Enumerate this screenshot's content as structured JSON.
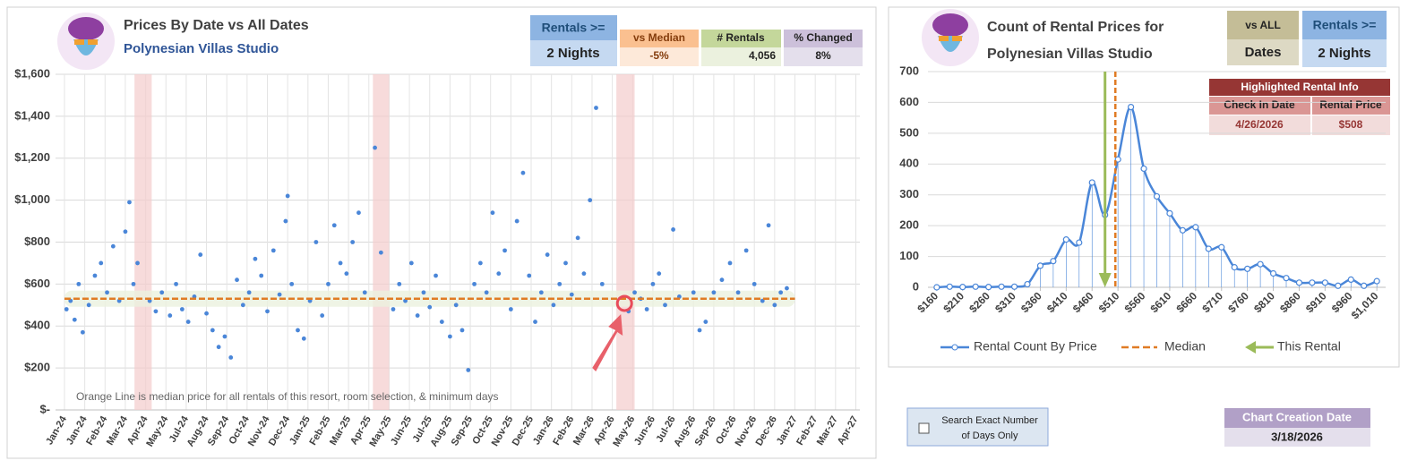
{
  "chart_data": [
    {
      "type": "scatter",
      "title": "Prices By Date vs All Dates",
      "subtitle": "Polynesian Villas Studio",
      "annotation": "Orange Line is median price for all rentals of this resort, room selection, & minimum days",
      "color": "#4a86d8",
      "x": [
        0.1,
        0.3,
        0.5,
        0.7,
        0.9,
        1.2,
        1.5,
        1.8,
        2.1,
        2.4,
        2.7,
        3.0,
        3.2,
        3.4,
        3.6,
        4.2,
        4.5,
        4.8,
        5.2,
        5.5,
        5.8,
        6.1,
        6.4,
        6.7,
        7.0,
        7.3,
        7.6,
        7.9,
        8.2,
        8.5,
        8.8,
        9.1,
        9.4,
        9.7,
        10.0,
        10.3,
        10.6,
        10.9,
        11.0,
        11.2,
        11.5,
        11.8,
        12.1,
        12.4,
        12.7,
        13.0,
        13.3,
        13.6,
        13.9,
        14.2,
        14.5,
        14.8,
        15.3,
        15.6,
        16.2,
        16.5,
        16.8,
        17.1,
        17.4,
        17.7,
        18.0,
        18.3,
        18.6,
        19.0,
        19.3,
        19.6,
        19.9,
        20.2,
        20.5,
        20.8,
        21.1,
        21.4,
        21.7,
        22.0,
        22.3,
        22.6,
        22.9,
        23.2,
        23.5,
        23.8,
        24.1,
        24.4,
        24.7,
        25.0,
        25.3,
        25.6,
        25.9,
        26.2,
        26.5,
        27.8,
        28.1,
        28.4,
        28.7,
        29.0,
        29.3,
        29.6,
        30.0,
        30.3,
        31.0,
        31.3,
        31.6,
        32.0,
        32.4,
        32.8,
        33.2,
        33.6,
        34.0,
        34.4,
        34.7,
        35.0,
        35.3,
        35.6
      ],
      "values": [
        480,
        520,
        430,
        600,
        370,
        500,
        640,
        700,
        560,
        780,
        520,
        850,
        990,
        600,
        700,
        520,
        470,
        560,
        450,
        600,
        480,
        420,
        540,
        740,
        460,
        380,
        300,
        350,
        250,
        620,
        500,
        560,
        720,
        640,
        470,
        760,
        550,
        900,
        1020,
        600,
        380,
        340,
        520,
        800,
        450,
        600,
        880,
        700,
        650,
        800,
        940,
        560,
        1250,
        750,
        480,
        600,
        520,
        700,
        450,
        560,
        490,
        640,
        420,
        350,
        500,
        380,
        190,
        600,
        700,
        560,
        940,
        650,
        760,
        480,
        900,
        1130,
        640,
        420,
        560,
        740,
        500,
        600,
        700,
        550,
        820,
        650,
        1000,
        1440,
        600,
        470,
        560,
        530,
        480,
        600,
        650,
        500,
        860,
        540,
        560,
        380,
        420,
        560,
        620,
        700,
        560,
        760,
        600,
        520,
        880,
        500,
        560,
        580
      ],
      "median": 530,
      "median_color": "#e07b24",
      "median_xlim": [
        0,
        36
      ],
      "highlight_bands": [
        [
          3.45,
          4.3
        ],
        [
          15.2,
          16.0
        ],
        [
          27.2,
          28.1
        ]
      ],
      "highlight_point": {
        "x": 27.6,
        "value": 508
      },
      "xlim": [
        -0.44,
        39.2
      ],
      "xticks": [
        {
          "value": 0,
          "label": "Jan-24"
        },
        {
          "value": 1,
          "label": "Jan-24"
        },
        {
          "value": 2,
          "label": "Feb-24"
        },
        {
          "value": 3,
          "label": "Mar-24"
        },
        {
          "value": 4,
          "label": "Apr-24"
        },
        {
          "value": 5,
          "label": "May-24"
        },
        {
          "value": 6,
          "label": "Jul-24"
        },
        {
          "value": 7,
          "label": "Aug-24"
        },
        {
          "value": 8,
          "label": "Sep-24"
        },
        {
          "value": 9,
          "label": "Oct-24"
        },
        {
          "value": 10,
          "label": "Nov-24"
        },
        {
          "value": 11,
          "label": "Dec-24"
        },
        {
          "value": 12,
          "label": "Jan-25"
        },
        {
          "value": 13,
          "label": "Feb-25"
        },
        {
          "value": 14,
          "label": "Mar-25"
        },
        {
          "value": 15,
          "label": "Apr-25"
        },
        {
          "value": 16,
          "label": "May-25"
        },
        {
          "value": 17,
          "label": "Jun-25"
        },
        {
          "value": 18,
          "label": "Jul-25"
        },
        {
          "value": 19,
          "label": "Aug-25"
        },
        {
          "value": 20,
          "label": "Sep-25"
        },
        {
          "value": 21,
          "label": "Oct-25"
        },
        {
          "value": 22,
          "label": "Nov-25"
        },
        {
          "value": 23,
          "label": "Dec-25"
        },
        {
          "value": 24,
          "label": "Jan-26"
        },
        {
          "value": 25,
          "label": "Feb-26"
        },
        {
          "value": 26,
          "label": "Mar-26"
        },
        {
          "value": 27,
          "label": "Apr-26"
        },
        {
          "value": 28,
          "label": "May-26"
        },
        {
          "value": 29,
          "label": "Jun-26"
        },
        {
          "value": 30,
          "label": "Jul-26"
        },
        {
          "value": 31,
          "label": "Aug-26"
        },
        {
          "value": 32,
          "label": "Sep-26"
        },
        {
          "value": 33,
          "label": "Oct-26"
        },
        {
          "value": 34,
          "label": "Nov-26"
        },
        {
          "value": 35,
          "label": "Dec-26"
        },
        {
          "value": 36,
          "label": "Jan-27"
        },
        {
          "value": 37,
          "label": "Feb-27"
        },
        {
          "value": 38,
          "label": "Mar-27"
        },
        {
          "value": 39,
          "label": "Apr-27"
        }
      ],
      "ylim": [
        0,
        1600
      ],
      "yticks": [
        {
          "value": 0,
          "label": "$-"
        },
        {
          "value": 200,
          "label": "$200"
        },
        {
          "value": 400,
          "label": "$400"
        },
        {
          "value": 600,
          "label": "$600"
        },
        {
          "value": 800,
          "label": "$800"
        },
        {
          "value": 1000,
          "label": "$1,000"
        },
        {
          "value": 1200,
          "label": "$1,200"
        },
        {
          "value": 1400,
          "label": "$1,400"
        },
        {
          "value": 1600,
          "label": "$1,600"
        }
      ],
      "grid": true
    },
    {
      "type": "line",
      "title": "Count of Rental Prices for",
      "subtitle": "Polynesian Villas Studio",
      "x": [
        160,
        185,
        210,
        235,
        260,
        285,
        310,
        335,
        360,
        385,
        410,
        435,
        460,
        485,
        510,
        535,
        560,
        585,
        610,
        635,
        660,
        685,
        710,
        735,
        760,
        785,
        810,
        835,
        860,
        885,
        910,
        935,
        960,
        985,
        1010
      ],
      "series": [
        {
          "name": "Rental Count By Price",
          "color": "#4a86d8",
          "values": [
            0,
            2,
            1,
            2,
            1,
            2,
            2,
            10,
            70,
            85,
            155,
            145,
            340,
            235,
            415,
            585,
            385,
            295,
            240,
            185,
            195,
            125,
            130,
            65,
            60,
            75,
            45,
            30,
            15,
            15,
            15,
            5,
            25,
            5,
            20
          ]
        }
      ],
      "median": {
        "name": "Median",
        "value": 505,
        "color": "#e07b24"
      },
      "this_rental": {
        "name": "This Rental",
        "value": 485,
        "color": "#9bbb59"
      },
      "xlim": [
        143,
        1027
      ],
      "xticks": [
        {
          "value": 160,
          "label": "$160"
        },
        {
          "value": 210,
          "label": "$210"
        },
        {
          "value": 260,
          "label": "$260"
        },
        {
          "value": 310,
          "label": "$310"
        },
        {
          "value": 360,
          "label": "$360"
        },
        {
          "value": 410,
          "label": "$410"
        },
        {
          "value": 460,
          "label": "$460"
        },
        {
          "value": 510,
          "label": "$510"
        },
        {
          "value": 560,
          "label": "$560"
        },
        {
          "value": 610,
          "label": "$610"
        },
        {
          "value": 660,
          "label": "$660"
        },
        {
          "value": 710,
          "label": "$710"
        },
        {
          "value": 760,
          "label": "$760"
        },
        {
          "value": 810,
          "label": "$810"
        },
        {
          "value": 860,
          "label": "$860"
        },
        {
          "value": 910,
          "label": "$910"
        },
        {
          "value": 960,
          "label": "$960"
        },
        {
          "value": 1010,
          "label": "$1,010"
        }
      ],
      "ylim": [
        0,
        700
      ],
      "yticks": [
        0,
        100,
        200,
        300,
        400,
        500,
        600,
        700
      ],
      "grid": true
    }
  ],
  "left_stats": [
    {
      "label": "Rentals >=",
      "value": "2 Nights"
    },
    {
      "label": "vs Median",
      "value": "-5%"
    },
    {
      "label": "# Rentals",
      "value": "4,056"
    },
    {
      "label": "% Changed",
      "value": "8%"
    }
  ],
  "right_stats": [
    {
      "label": "vs ALL",
      "value": "Dates"
    },
    {
      "label": "Rentals >=",
      "value": "2 Nights"
    }
  ],
  "highlighted_rental": {
    "title": "Highlighted Rental Info",
    "headers": [
      "Check In Date",
      "Rental Price"
    ],
    "row": [
      "4/26/2026",
      "$508"
    ]
  },
  "checkbox": {
    "label_line1": "Search Exact Number",
    "label_line2": "of Days Only"
  },
  "creation_date": {
    "label": "Chart Creation Date",
    "value": "3/18/2026"
  }
}
